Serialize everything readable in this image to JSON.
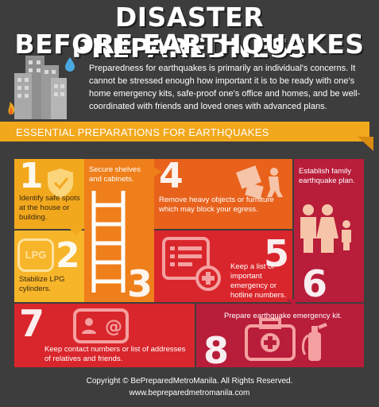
{
  "title": {
    "line1": "DISASTER PREPAREDNESS",
    "line2": "BEFORE EARTHQUAKES"
  },
  "intro": "Preparedness for earthquakes is primarily an individual's concerns. It cannot be stressed enough how important it is to be ready with one's home emergency kits, safe-proof one's office and homes, and be well-coordinated with friends and loved ones with advanced plans.",
  "banner": "ESSENTIAL PREPARATIONS FOR EARTHQUAKES",
  "steps": [
    {
      "number": "1",
      "label": "Identify safe spots at the house or building."
    },
    {
      "number": "2",
      "label": "Stabilize LPG cylinders.",
      "icon_text": "LPG"
    },
    {
      "number": "3",
      "label": "Secure shelves and cabinets."
    },
    {
      "number": "4",
      "label": "Remove heavy objects or furniture which may block your egress."
    },
    {
      "number": "5",
      "label": "Keep a list of important emergency or hotline numbers."
    },
    {
      "number": "6",
      "label": "Establish family earthquake plan."
    },
    {
      "number": "7",
      "label": "Keep contact numbers or list of addresses of relatives and friends."
    },
    {
      "number": "8",
      "label": "Prepare earthquake emergency kit."
    }
  ],
  "footer": {
    "copyright": "Copyright © BePreparedMetroManila. All Rights Reserved.",
    "url": "www.bepreparedmetromanila.com"
  },
  "colors": {
    "background": "#3d3d3d",
    "yellow": "#f2a81d",
    "orange": "#e8621c",
    "red": "#d9262c",
    "crimson": "#b81d3a"
  }
}
